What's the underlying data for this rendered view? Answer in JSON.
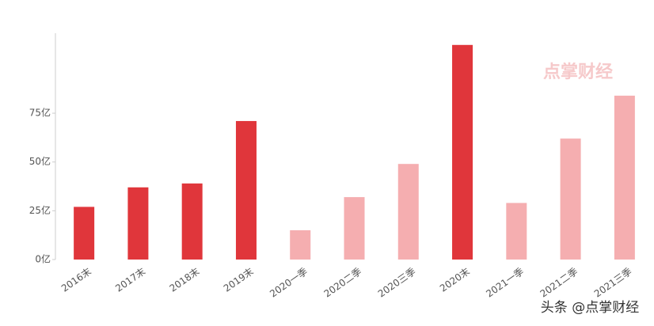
{
  "chart_data": {
    "type": "bar",
    "categories": [
      "2016末",
      "2017末",
      "2018末",
      "2019末",
      "2020一季",
      "2020二季",
      "2020三季",
      "2020末",
      "2021一季",
      "2021二季",
      "2021三季"
    ],
    "values": [
      27,
      37,
      39,
      71,
      15,
      32,
      49,
      110,
      29,
      62,
      84
    ],
    "colors": [
      "#e0363b",
      "#e0363b",
      "#e0363b",
      "#e0363b",
      "#f5aeb0",
      "#f5aeb0",
      "#f5aeb0",
      "#e0363b",
      "#f5aeb0",
      "#f5aeb0",
      "#f5aeb0"
    ],
    "ylim": [
      0,
      116
    ],
    "yticks": [
      {
        "value": 0,
        "label": "0亿"
      },
      {
        "value": 25,
        "label": "25亿"
      },
      {
        "value": 50,
        "label": "50亿"
      },
      {
        "value": 75,
        "label": "75亿"
      }
    ],
    "grid": false,
    "watermark": "点掌财经",
    "footer": "头条 @点掌财经"
  }
}
